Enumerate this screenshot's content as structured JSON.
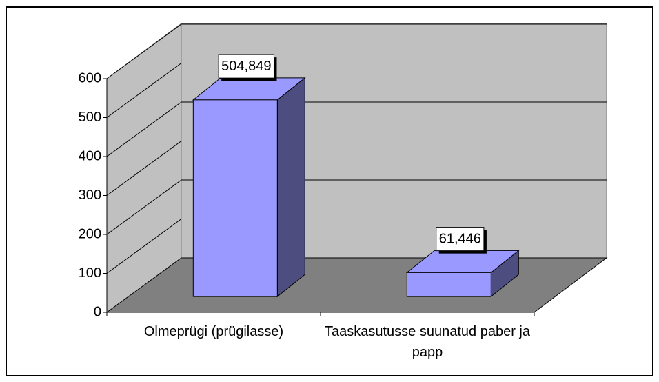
{
  "chart_data": {
    "type": "bar3d",
    "categories": [
      "Olmeprügi (prügilasse)",
      "Taaskasutusse suunatud paber ja papp"
    ],
    "values": [
      504.849,
      61.446
    ],
    "value_labels": [
      "504,849",
      "61,446"
    ],
    "color": "#9999ff",
    "ylim": [
      0,
      600
    ],
    "yticks": [
      0,
      100,
      200,
      300,
      400,
      500,
      600
    ],
    "grid": true
  }
}
